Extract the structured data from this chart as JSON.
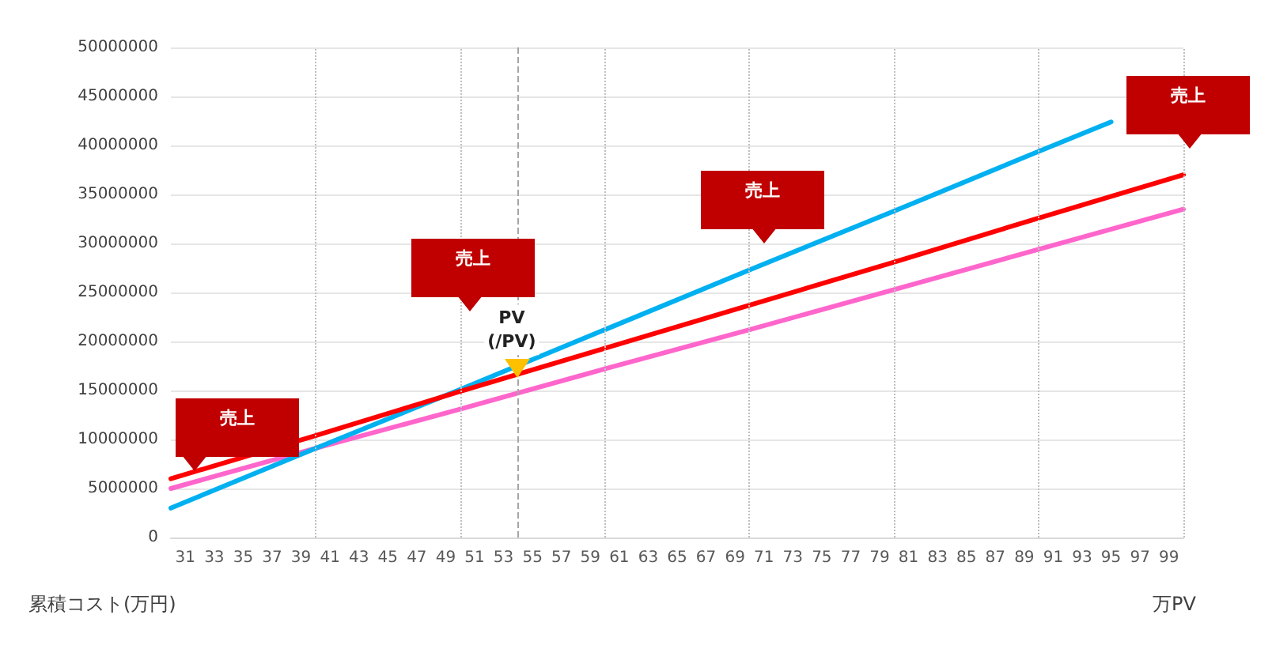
{
  "chart_data": {
    "type": "line",
    "xlabel": "万PV",
    "ylabel": "累積コスト(万円)",
    "x": [
      30,
      40,
      50,
      60,
      70,
      80,
      90,
      100
    ],
    "series": [
      {
        "color": "#ff66cc",
        "values": [
          5000000,
          9100000,
          13100000,
          17200000,
          21200000,
          25300000,
          29400000,
          33500000
        ]
      },
      {
        "color": "#00b0f0",
        "x": [
          30,
          40,
          50,
          60,
          70,
          80,
          90,
          95
        ],
        "values": [
          3000000,
          9100000,
          15100000,
          21200000,
          27300000,
          33300000,
          39400000,
          42400000
        ]
      },
      {
        "color": "#ff0000",
        "values": [
          6000000,
          10400000,
          14900000,
          19300000,
          23700000,
          28100000,
          32600000,
          37000000
        ]
      }
    ],
    "xlim": [
      30,
      100
    ],
    "xticks": [
      31,
      33,
      35,
      37,
      39,
      41,
      43,
      45,
      47,
      49,
      51,
      53,
      55,
      57,
      59,
      61,
      63,
      65,
      67,
      69,
      71,
      73,
      75,
      77,
      79,
      81,
      83,
      85,
      87,
      89,
      91,
      93,
      95,
      97,
      99
    ],
    "ylim": [
      0,
      50000000
    ],
    "yticks": [
      0,
      5000000,
      10000000,
      15000000,
      20000000,
      25000000,
      30000000,
      35000000,
      40000000,
      45000000,
      50000000
    ],
    "grid": "y",
    "marker": "none",
    "line_style": "solid",
    "ref_lines": [
      {
        "axis": "x",
        "value": 40,
        "color": "#bfbfbf",
        "line_style": "dotted"
      },
      {
        "axis": "x",
        "value": 50,
        "color": "#bfbfbf",
        "line_style": "dotted"
      },
      {
        "axis": "x",
        "value": 54,
        "color": "#a6a6a6",
        "line_style": "dashed",
        "label": "PV\n(/PV)"
      },
      {
        "axis": "x",
        "value": 60,
        "color": "#bfbfbf",
        "line_style": "dotted"
      },
      {
        "axis": "x",
        "value": 70,
        "color": "#bfbfbf",
        "line_style": "dotted"
      },
      {
        "axis": "x",
        "value": 80,
        "color": "#bfbfbf",
        "line_style": "dotted"
      },
      {
        "axis": "x",
        "value": 90,
        "color": "#bfbfbf",
        "line_style": "dotted"
      },
      {
        "axis": "x",
        "value": 100,
        "color": "#bfbfbf",
        "line_style": "dotted"
      }
    ],
    "annotations": [
      "売上",
      "売上",
      "売上",
      "売上"
    ]
  }
}
